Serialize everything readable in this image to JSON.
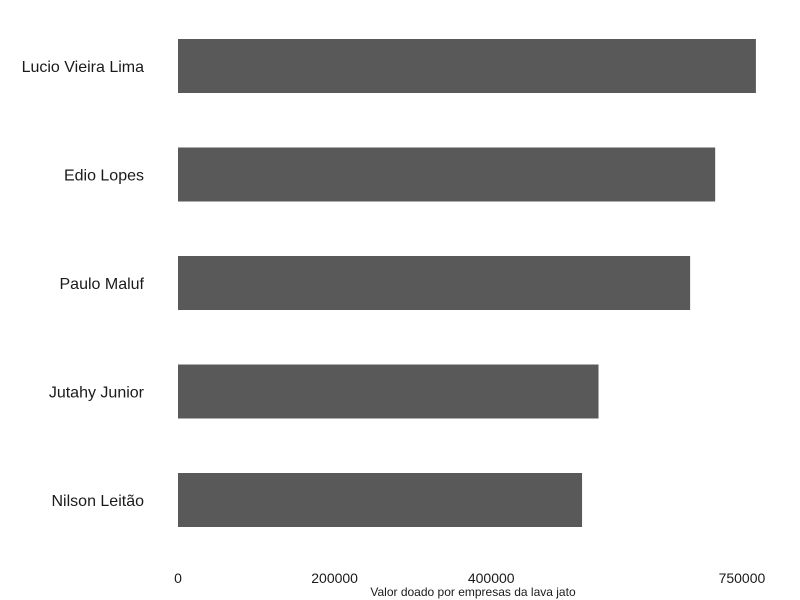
{
  "chart_data": {
    "type": "bar",
    "orientation": "horizontal",
    "categories": [
      "Lucio Vieira Lima",
      "Edio Lopes",
      "Paulo Maluf",
      "Jutahy Junior",
      "Nilson Leitão"
    ],
    "values": [
      738000,
      686000,
      654000,
      537000,
      516000
    ],
    "xlabel": "Valor doado por empresas da lava jato",
    "ylabel": "",
    "xticks": [
      0,
      200000,
      400000,
      750000
    ],
    "xtick_labels": [
      "0",
      "200000",
      "400000",
      "750000"
    ],
    "xlim": [
      0,
      756000
    ],
    "bar_color": "#595959",
    "grid": false,
    "legend": false
  }
}
